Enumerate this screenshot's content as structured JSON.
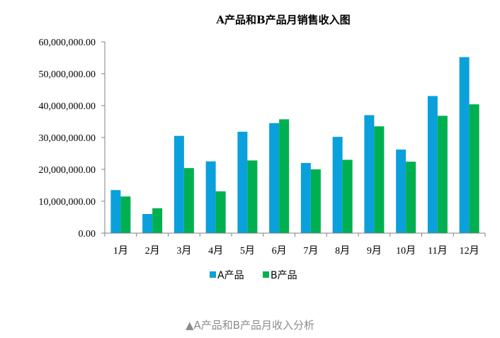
{
  "chart_data": {
    "type": "bar",
    "title": "A产品和B产品月销售收入图",
    "xlabel": "",
    "ylabel": "",
    "categories": [
      "1月",
      "2月",
      "3月",
      "4月",
      "5月",
      "6月",
      "7月",
      "8月",
      "9月",
      "10月",
      "11月",
      "12月"
    ],
    "series": [
      {
        "name": "A产品",
        "color": "#0aa0dc",
        "values": [
          13500000,
          6000000,
          30500000,
          22500000,
          31800000,
          34500000,
          22000000,
          30200000,
          37000000,
          26200000,
          43000000,
          55200000
        ]
      },
      {
        "name": "B产品",
        "color": "#00b050",
        "values": [
          11500000,
          7800000,
          20400000,
          13100000,
          22800000,
          35700000,
          20000000,
          23000000,
          33500000,
          22400000,
          36800000,
          40400000
        ]
      }
    ],
    "ylim": [
      0,
      60000000
    ],
    "yticks": [
      0,
      10000000,
      20000000,
      30000000,
      40000000,
      50000000,
      60000000
    ],
    "ytick_labels": [
      "0.00",
      "10,000,000.00",
      "20,000,000.00",
      "30,000,000.00",
      "40,000,000.00",
      "50,000,000.00",
      "60,000,000.00"
    ],
    "grid": false,
    "legend_position": "bottom"
  },
  "caption": "▲A产品和B产品月收入分析"
}
